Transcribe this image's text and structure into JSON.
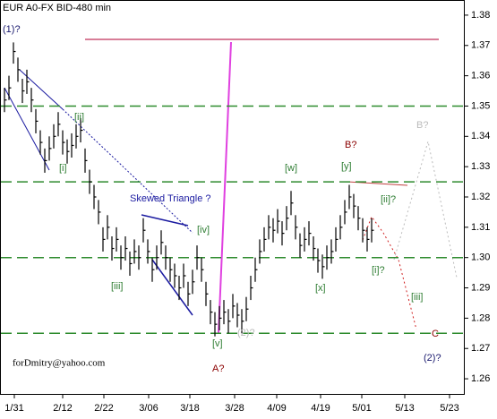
{
  "chart_data": {
    "type": "ohlc",
    "title": "EUR A0-FX BID-480 min",
    "color": "#000000",
    "xlim": [
      0,
      104
    ],
    "xticks": [
      {
        "value": 3.2,
        "label": "1/31"
      },
      {
        "value": 14,
        "label": "2/12"
      },
      {
        "value": 23.2,
        "label": "2/22"
      },
      {
        "value": 33.2,
        "label": "3/06"
      },
      {
        "value": 42.4,
        "label": "3/18"
      },
      {
        "value": 52.4,
        "label": "3/28"
      },
      {
        "value": 61.8,
        "label": "4/09"
      },
      {
        "value": 71.6,
        "label": "4/19"
      },
      {
        "value": 80.8,
        "label": "5/01"
      },
      {
        "value": 90.4,
        "label": "5/13"
      },
      {
        "value": 100.4,
        "label": "5/23"
      }
    ],
    "ylim": [
      1.255,
      1.385
    ],
    "yticks": [
      {
        "value": 1.26,
        "label": "1.26"
      },
      1.27,
      1.28,
      1.29,
      {
        "value": 1.3,
        "label": "1.30"
      },
      1.31,
      1.32,
      1.33,
      1.34,
      1.35,
      1.36,
      1.37,
      1.38
    ],
    "close": [
      1.352,
      1.356,
      1.368,
      1.362,
      1.355,
      1.358,
      1.352,
      1.345,
      1.338,
      1.332,
      1.336,
      1.34,
      1.344,
      1.338,
      1.335,
      1.337,
      1.34,
      1.342,
      1.332,
      1.325,
      1.32,
      1.315,
      1.306,
      1.31,
      1.303,
      1.306,
      1.3,
      1.303,
      1.298,
      1.302,
      1.3,
      1.309,
      1.302,
      1.296,
      1.3,
      1.305,
      1.3,
      1.296,
      1.294,
      1.29,
      1.294,
      1.288,
      1.292,
      1.3,
      1.296,
      1.288,
      1.282,
      1.278,
      1.28,
      1.282,
      1.279,
      1.284,
      1.281,
      1.279,
      1.283,
      1.29,
      1.296,
      1.302,
      1.306,
      1.31,
      1.309,
      1.312,
      1.308,
      1.313,
      1.318,
      1.31,
      1.304,
      1.306,
      1.308,
      1.303,
      1.299,
      1.297,
      1.3,
      1.302,
      1.306,
      1.31,
      1.315,
      1.32,
      1.317,
      1.313,
      1.309,
      1.306,
      1.309
    ],
    "high": [
      1.356,
      1.36,
      1.371,
      1.366,
      1.359,
      1.362,
      1.356,
      1.349,
      1.342,
      1.336,
      1.34,
      1.344,
      1.348,
      1.342,
      1.339,
      1.341,
      1.344,
      1.346,
      1.336,
      1.329,
      1.324,
      1.319,
      1.31,
      1.314,
      1.307,
      1.31,
      1.304,
      1.307,
      1.302,
      1.306,
      1.304,
      1.313,
      1.306,
      1.3,
      1.304,
      1.309,
      1.304,
      1.3,
      1.298,
      1.294,
      1.298,
      1.292,
      1.296,
      1.304,
      1.3,
      1.292,
      1.286,
      1.282,
      1.284,
      1.286,
      1.283,
      1.288,
      1.285,
      1.283,
      1.287,
      1.294,
      1.3,
      1.306,
      1.31,
      1.314,
      1.313,
      1.316,
      1.312,
      1.317,
      1.322,
      1.314,
      1.308,
      1.31,
      1.312,
      1.307,
      1.303,
      1.301,
      1.304,
      1.306,
      1.31,
      1.314,
      1.319,
      1.324,
      1.321,
      1.317,
      1.313,
      1.31,
      1.313
    ],
    "low": [
      1.348,
      1.352,
      1.364,
      1.358,
      1.351,
      1.354,
      1.348,
      1.341,
      1.334,
      1.328,
      1.332,
      1.336,
      1.34,
      1.334,
      1.331,
      1.333,
      1.336,
      1.338,
      1.328,
      1.321,
      1.316,
      1.311,
      1.302,
      1.306,
      1.299,
      1.302,
      1.296,
      1.299,
      1.294,
      1.298,
      1.296,
      1.305,
      1.298,
      1.292,
      1.296,
      1.301,
      1.296,
      1.292,
      1.29,
      1.286,
      1.29,
      1.284,
      1.288,
      1.296,
      1.292,
      1.284,
      1.278,
      1.274,
      1.276,
      1.278,
      1.275,
      1.28,
      1.277,
      1.275,
      1.279,
      1.286,
      1.292,
      1.298,
      1.302,
      1.306,
      1.305,
      1.308,
      1.304,
      1.309,
      1.314,
      1.306,
      1.3,
      1.302,
      1.304,
      1.299,
      1.295,
      1.293,
      1.296,
      1.298,
      1.302,
      1.306,
      1.311,
      1.316,
      1.313,
      1.309,
      1.305,
      1.302,
      1.305
    ],
    "dashed_levels": [
      1.35,
      1.325,
      1.3,
      1.275
    ],
    "dashed_color": "#2e8b2e",
    "top_level": 1.372,
    "top_level_color": "#c0305a",
    "annotations": [
      {
        "text": "(1)?",
        "color": "#1a1a6e"
      },
      {
        "text": "[ii]",
        "color": "#2e7d32"
      },
      {
        "text": "[i]",
        "color": "#2e7d32"
      },
      {
        "text": "[iii]",
        "color": "#2e7d32"
      },
      {
        "text": "[iv]",
        "color": "#2e7d32"
      },
      {
        "text": "Skewed Triangle ?",
        "color": "#1a1aa0"
      },
      {
        "text": "[v]",
        "color": "#2e7d32"
      },
      {
        "text": "A?",
        "color": "#8b0000"
      },
      {
        "text": "(2)?",
        "color": "#bbbbbb"
      },
      {
        "text": "[w]",
        "color": "#2e7d32"
      },
      {
        "text": "[y]",
        "color": "#2e7d32"
      },
      {
        "text": "B?",
        "color": "#8b0000"
      },
      {
        "text": "[x]",
        "color": "#2e7d32"
      },
      {
        "text": "[ii]?",
        "color": "#2e7d32"
      },
      {
        "text": "[i]?",
        "color": "#2e7d32"
      },
      {
        "text": "[iii]",
        "color": "#2e7d32"
      },
      {
        "text": "B?",
        "color": "#bbbbbb"
      },
      {
        "text": "C",
        "color": "#8b0000"
      },
      {
        "text": "(2)?",
        "color": "#1a1a6e"
      },
      {
        "text": "forDmitry@yahoo.com",
        "color": "#000000"
      }
    ]
  }
}
